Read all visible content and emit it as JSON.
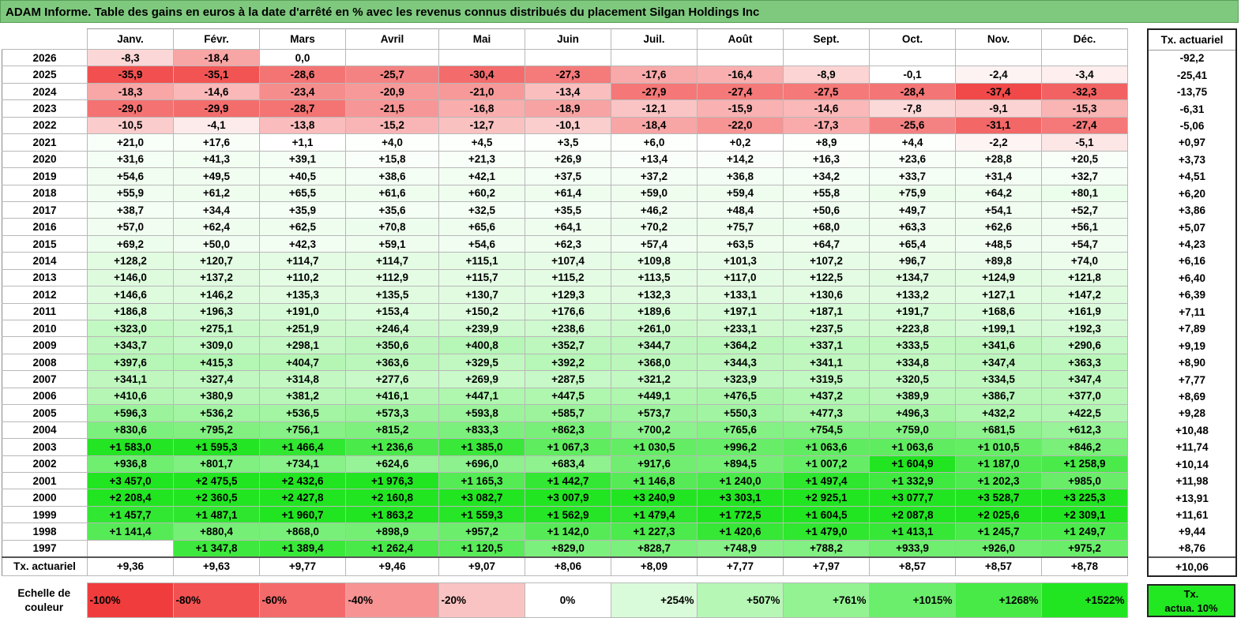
{
  "title": "ADAM Informe. Table des gains en euros à la date d'arrêté en % avec les revenus connus distribués du placement Silgan Holdings Inc",
  "chart_data": {
    "type": "heatmap",
    "title": "ADAM Informe. Table des gains en euros à la date d'arrêté en % avec les revenus connus distribués du placement Silgan Holdings Inc",
    "months": [
      "Janv.",
      "Févr.",
      "Mars",
      "Avril",
      "Mai",
      "Juin",
      "Juil.",
      "Août",
      "Sept.",
      "Oct.",
      "Nov.",
      "Déc."
    ],
    "annual_header": "Tx. actuariel",
    "rows": [
      {
        "year": "2026",
        "cells": [
          "-8,3",
          "-18,4",
          "0,0",
          "",
          "",
          "",
          "",
          "",
          "",
          "",
          "",
          ""
        ],
        "rate": "-92,2"
      },
      {
        "year": "2025",
        "cells": [
          "-35,9",
          "-35,1",
          "-28,6",
          "-25,7",
          "-30,4",
          "-27,3",
          "-17,6",
          "-16,4",
          "-8,9",
          "-0,1",
          "-2,4",
          "-3,4"
        ],
        "rate": "-25,41"
      },
      {
        "year": "2024",
        "cells": [
          "-18,3",
          "-14,6",
          "-23,4",
          "-20,9",
          "-21,0",
          "-13,4",
          "-27,9",
          "-27,4",
          "-27,5",
          "-28,4",
          "-37,4",
          "-32,3"
        ],
        "rate": "-13,75"
      },
      {
        "year": "2023",
        "cells": [
          "-29,0",
          "-29,9",
          "-28,7",
          "-21,5",
          "-16,8",
          "-18,9",
          "-12,1",
          "-15,9",
          "-14,6",
          "-7,8",
          "-9,1",
          "-15,3"
        ],
        "rate": "-6,31"
      },
      {
        "year": "2022",
        "cells": [
          "-10,5",
          "-4,1",
          "-13,8",
          "-15,2",
          "-12,7",
          "-10,1",
          "-18,4",
          "-22,0",
          "-17,3",
          "-25,6",
          "-31,1",
          "-27,4"
        ],
        "rate": "-5,06"
      },
      {
        "year": "2021",
        "cells": [
          "+21,0",
          "+17,6",
          "+1,1",
          "+4,0",
          "+4,5",
          "+3,5",
          "+6,0",
          "+0,2",
          "+8,9",
          "+4,4",
          "-2,2",
          "-5,1"
        ],
        "rate": "+0,97"
      },
      {
        "year": "2020",
        "cells": [
          "+31,6",
          "+41,3",
          "+39,1",
          "+15,8",
          "+21,3",
          "+26,9",
          "+13,4",
          "+14,2",
          "+16,3",
          "+23,6",
          "+28,8",
          "+20,5"
        ],
        "rate": "+3,73"
      },
      {
        "year": "2019",
        "cells": [
          "+54,6",
          "+49,5",
          "+40,5",
          "+38,6",
          "+42,1",
          "+37,5",
          "+37,2",
          "+36,8",
          "+34,2",
          "+33,7",
          "+31,4",
          "+32,7"
        ],
        "rate": "+4,51"
      },
      {
        "year": "2018",
        "cells": [
          "+55,9",
          "+61,2",
          "+65,5",
          "+61,6",
          "+60,2",
          "+61,4",
          "+59,0",
          "+59,4",
          "+55,8",
          "+75,9",
          "+64,2",
          "+80,1"
        ],
        "rate": "+6,20"
      },
      {
        "year": "2017",
        "cells": [
          "+38,7",
          "+34,4",
          "+35,9",
          "+35,6",
          "+32,5",
          "+35,5",
          "+46,2",
          "+48,4",
          "+50,6",
          "+49,7",
          "+54,1",
          "+52,7"
        ],
        "rate": "+3,86"
      },
      {
        "year": "2016",
        "cells": [
          "+57,0",
          "+62,4",
          "+62,5",
          "+70,8",
          "+65,6",
          "+64,1",
          "+70,2",
          "+75,7",
          "+68,0",
          "+63,3",
          "+62,6",
          "+56,1"
        ],
        "rate": "+5,07"
      },
      {
        "year": "2015",
        "cells": [
          "+69,2",
          "+50,0",
          "+42,3",
          "+59,1",
          "+54,6",
          "+62,3",
          "+57,4",
          "+63,5",
          "+64,7",
          "+65,4",
          "+48,5",
          "+54,7"
        ],
        "rate": "+4,23"
      },
      {
        "year": "2014",
        "cells": [
          "+128,2",
          "+120,7",
          "+114,7",
          "+114,7",
          "+115,1",
          "+107,4",
          "+109,8",
          "+101,3",
          "+107,2",
          "+96,7",
          "+89,8",
          "+74,0"
        ],
        "rate": "+6,16"
      },
      {
        "year": "2013",
        "cells": [
          "+146,0",
          "+137,2",
          "+110,2",
          "+112,9",
          "+115,7",
          "+115,2",
          "+113,5",
          "+117,0",
          "+122,5",
          "+134,7",
          "+124,9",
          "+121,8"
        ],
        "rate": "+6,40"
      },
      {
        "year": "2012",
        "cells": [
          "+146,6",
          "+146,2",
          "+135,3",
          "+135,5",
          "+130,7",
          "+129,3",
          "+132,3",
          "+133,1",
          "+130,6",
          "+133,2",
          "+127,1",
          "+147,2"
        ],
        "rate": "+6,39"
      },
      {
        "year": "2011",
        "cells": [
          "+186,8",
          "+196,3",
          "+191,0",
          "+153,4",
          "+150,2",
          "+176,6",
          "+189,6",
          "+197,1",
          "+187,1",
          "+191,7",
          "+168,6",
          "+161,9"
        ],
        "rate": "+7,11"
      },
      {
        "year": "2010",
        "cells": [
          "+323,0",
          "+275,1",
          "+251,9",
          "+246,4",
          "+239,9",
          "+238,6",
          "+261,0",
          "+233,1",
          "+237,5",
          "+223,8",
          "+199,1",
          "+192,3"
        ],
        "rate": "+7,89"
      },
      {
        "year": "2009",
        "cells": [
          "+343,7",
          "+309,0",
          "+298,1",
          "+350,6",
          "+400,8",
          "+352,7",
          "+344,7",
          "+364,2",
          "+337,1",
          "+333,5",
          "+341,6",
          "+290,6"
        ],
        "rate": "+9,19"
      },
      {
        "year": "2008",
        "cells": [
          "+397,6",
          "+415,3",
          "+404,7",
          "+363,6",
          "+329,5",
          "+392,2",
          "+368,0",
          "+344,3",
          "+341,1",
          "+334,8",
          "+347,4",
          "+363,3"
        ],
        "rate": "+8,90"
      },
      {
        "year": "2007",
        "cells": [
          "+341,1",
          "+327,4",
          "+314,8",
          "+277,6",
          "+269,9",
          "+287,5",
          "+321,2",
          "+323,9",
          "+319,5",
          "+320,5",
          "+334,5",
          "+347,4"
        ],
        "rate": "+7,77"
      },
      {
        "year": "2006",
        "cells": [
          "+410,6",
          "+380,9",
          "+381,2",
          "+416,1",
          "+447,1",
          "+447,5",
          "+449,1",
          "+476,5",
          "+437,2",
          "+389,9",
          "+386,7",
          "+377,0"
        ],
        "rate": "+8,69"
      },
      {
        "year": "2005",
        "cells": [
          "+596,3",
          "+536,2",
          "+536,5",
          "+573,3",
          "+593,8",
          "+585,7",
          "+573,7",
          "+550,3",
          "+477,3",
          "+496,3",
          "+432,2",
          "+422,5"
        ],
        "rate": "+9,28"
      },
      {
        "year": "2004",
        "cells": [
          "+830,6",
          "+795,2",
          "+756,1",
          "+815,2",
          "+833,3",
          "+862,3",
          "+700,2",
          "+765,6",
          "+754,5",
          "+759,0",
          "+681,5",
          "+612,3"
        ],
        "rate": "+10,48"
      },
      {
        "year": "2003",
        "cells": [
          "+1 583,0",
          "+1 595,3",
          "+1 466,4",
          "+1 236,6",
          "+1 385,0",
          "+1 067,3",
          "+1 030,5",
          "+996,2",
          "+1 063,6",
          "+1 063,6",
          "+1 010,5",
          "+846,2"
        ],
        "rate": "+11,74"
      },
      {
        "year": "2002",
        "cells": [
          "+936,8",
          "+801,7",
          "+734,1",
          "+624,6",
          "+696,0",
          "+683,4",
          "+917,6",
          "+894,5",
          "+1 007,2",
          "+1 604,9",
          "+1 187,0",
          "+1 258,9"
        ],
        "rate": "+10,14"
      },
      {
        "year": "2001",
        "cells": [
          "+3 457,0",
          "+2 475,5",
          "+2 432,6",
          "+1 976,3",
          "+1 165,3",
          "+1 442,7",
          "+1 146,8",
          "+1 240,0",
          "+1 497,4",
          "+1 332,9",
          "+1 202,3",
          "+985,0"
        ],
        "rate": "+11,98"
      },
      {
        "year": "2000",
        "cells": [
          "+2 208,4",
          "+2 360,5",
          "+2 427,8",
          "+2 160,8",
          "+3 082,7",
          "+3 007,9",
          "+3 240,9",
          "+3 303,1",
          "+2 925,1",
          "+3 077,7",
          "+3 528,7",
          "+3 225,3"
        ],
        "rate": "+13,91"
      },
      {
        "year": "1999",
        "cells": [
          "+1 457,7",
          "+1 487,1",
          "+1 960,7",
          "+1 863,2",
          "+1 559,3",
          "+1 562,9",
          "+1 479,4",
          "+1 772,5",
          "+1 604,5",
          "+2 087,8",
          "+2 025,6",
          "+2 309,1"
        ],
        "rate": "+11,61"
      },
      {
        "year": "1998",
        "cells": [
          "+1 141,4",
          "+880,4",
          "+868,0",
          "+898,9",
          "+957,2",
          "+1 142,0",
          "+1 227,3",
          "+1 420,6",
          "+1 479,0",
          "+1 413,1",
          "+1 245,7",
          "+1 249,7"
        ],
        "rate": "+9,44"
      },
      {
        "year": "1997",
        "cells": [
          "",
          "+1 347,8",
          "+1 389,4",
          "+1 262,4",
          "+1 120,5",
          "+829,0",
          "+828,7",
          "+748,9",
          "+788,2",
          "+933,9",
          "+926,0",
          "+975,2"
        ],
        "rate": "+8,76"
      }
    ],
    "footer": {
      "label": "Tx. actuariel",
      "cells": [
        "+9,36",
        "+9,63",
        "+9,77",
        "+9,46",
        "+9,07",
        "+8,06",
        "+8,09",
        "+7,77",
        "+7,97",
        "+8,57",
        "+8,57",
        "+8,78"
      ],
      "rate": "+10,06"
    },
    "scale": {
      "label_line1": "Echelle de",
      "label_line2": "couleur",
      "steps": [
        {
          "label": "-100%",
          "color": "#f03c3c"
        },
        {
          "label": "-80%",
          "color": "#f25252"
        },
        {
          "label": "-60%",
          "color": "#f46a6a"
        },
        {
          "label": "-40%",
          "color": "#f79393"
        },
        {
          "label": "-20%",
          "color": "#fac3c3"
        },
        {
          "label": "0%",
          "color": "#ffffff"
        },
        {
          "label": "+254%",
          "color": "#d9fbd9"
        },
        {
          "label": "+507%",
          "color": "#b6f7b6"
        },
        {
          "label": "+761%",
          "color": "#93f393"
        },
        {
          "label": "+1015%",
          "color": "#6bee6b"
        },
        {
          "label": "+1268%",
          "color": "#48ea48"
        },
        {
          "label": "+1522%",
          "color": "#22e522"
        }
      ],
      "actua_line1": "Tx.",
      "actua_line2": "actua. 10%"
    },
    "colors": {
      "negative_max": "#f03c3c",
      "positive_max": "#22e522",
      "title_bar": "#7fc97f"
    }
  }
}
